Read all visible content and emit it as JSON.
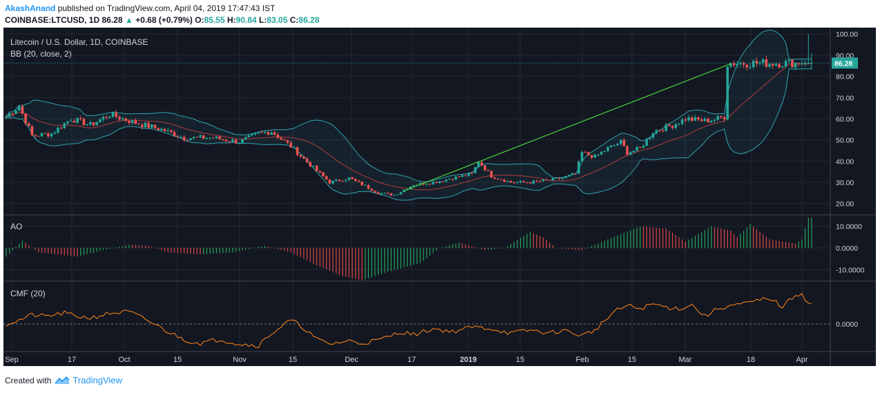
{
  "header": {
    "author": "AkashAnand",
    "published": "published on TradingView.com, April 04, 2019 17:47:43 IST",
    "symbol": "COINBASE:LTCUSD, 1D",
    "price": "86.28",
    "change_arrow": "▲",
    "change": "+0.68 (+0.79%)",
    "o_label": "O:",
    "o": "85.55",
    "h_label": "H:",
    "h": "90.84",
    "l_label": "L:",
    "l": "83.05",
    "c_label": "C:",
    "c": "86.28"
  },
  "footer": {
    "created_with": "Created with",
    "brand": "TradingView",
    "logo_icon": "tradingview-logo-icon"
  },
  "colors": {
    "bg": "#131722",
    "up": "#26a69a",
    "down": "#ef5350",
    "bb": "#2fa6b1",
    "basis": "#b43c3c",
    "trend": "#4cd93c",
    "cmf": "#f57f17",
    "grid": "#242832"
  },
  "chart_data": [
    {
      "type": "candlestick",
      "title": "Litecoin / U.S. Dollar, 1D, COINBASE",
      "indicator": "BB (20, close, 2)",
      "ylim": [
        15,
        103
      ],
      "y_ticks": [
        "100.00",
        "90.00",
        "80.00",
        "70.00",
        "60.00",
        "50.00",
        "40.00",
        "30.00",
        "20.00"
      ],
      "last_price_label": "86.28",
      "last_price": 86.28,
      "x_ticks": [
        "Sep",
        "17",
        "Oct",
        "15",
        "Nov",
        "15",
        "Dec",
        "17",
        "2019",
        "15",
        "Feb",
        "15",
        "Mar",
        "18",
        "Apr"
      ],
      "close_anchors": [
        [
          0,
          61
        ],
        [
          4,
          66
        ],
        [
          8,
          52
        ],
        [
          14,
          53
        ],
        [
          20,
          60
        ],
        [
          26,
          57
        ],
        [
          32,
          62
        ],
        [
          40,
          58
        ],
        [
          48,
          55
        ],
        [
          55,
          51
        ],
        [
          64,
          51
        ],
        [
          72,
          49
        ],
        [
          78,
          53
        ],
        [
          82,
          54
        ],
        [
          88,
          47
        ],
        [
          92,
          41
        ],
        [
          100,
          30
        ],
        [
          106,
          32
        ],
        [
          110,
          29
        ],
        [
          115,
          25
        ],
        [
          120,
          24
        ],
        [
          126,
          29
        ],
        [
          132,
          30
        ],
        [
          138,
          32
        ],
        [
          144,
          34
        ],
        [
          146,
          40
        ],
        [
          150,
          33
        ],
        [
          156,
          30
        ],
        [
          162,
          30
        ],
        [
          168,
          31
        ],
        [
          172,
          32
        ],
        [
          176,
          34
        ],
        [
          178,
          44
        ],
        [
          182,
          42
        ],
        [
          186,
          46
        ],
        [
          190,
          49
        ],
        [
          192,
          44
        ],
        [
          196,
          46
        ],
        [
          200,
          54
        ],
        [
          206,
          57
        ],
        [
          210,
          60
        ],
        [
          216,
          59
        ],
        [
          220,
          60
        ],
        [
          222,
          61
        ],
        [
          223,
          86
        ],
        [
          224,
          86.28
        ]
      ],
      "trendline": [
        [
          123,
          26
        ],
        [
          224,
          86
        ]
      ],
      "bb_period": 20,
      "bb_mult": 2
    },
    {
      "type": "bar",
      "title": "AO",
      "ylim": [
        -15,
        15
      ],
      "y_ticks": [
        "10.0000",
        "0.0000",
        "-10.0000"
      ],
      "ao_anchors": [
        [
          0,
          -4
        ],
        [
          5,
          3.5
        ],
        [
          10,
          -2
        ],
        [
          16,
          -3
        ],
        [
          22,
          -4
        ],
        [
          30,
          -1
        ],
        [
          38,
          1.5
        ],
        [
          44,
          1
        ],
        [
          50,
          -2
        ],
        [
          60,
          -3
        ],
        [
          70,
          -2
        ],
        [
          80,
          1
        ],
        [
          88,
          -2
        ],
        [
          96,
          -8
        ],
        [
          104,
          -13
        ],
        [
          110,
          -15
        ],
        [
          118,
          -11
        ],
        [
          128,
          -7
        ],
        [
          134,
          0
        ],
        [
          140,
          2.5
        ],
        [
          148,
          -1
        ],
        [
          154,
          0
        ],
        [
          162,
          7.5
        ],
        [
          166,
          5
        ],
        [
          170,
          0
        ],
        [
          178,
          -1
        ],
        [
          186,
          4
        ],
        [
          196,
          10
        ],
        [
          204,
          9
        ],
        [
          210,
          3
        ],
        [
          218,
          10
        ],
        [
          224,
          8
        ],
        [
          226,
          5
        ],
        [
          228,
          8
        ],
        [
          230,
          11
        ],
        [
          236,
          4
        ],
        [
          244,
          2
        ],
        [
          246,
          4
        ],
        [
          248,
          14
        ]
      ]
    },
    {
      "type": "line",
      "title": "CMF (20)",
      "ylim": [
        -0.35,
        0.55
      ],
      "y_ticks": [
        "0.0000"
      ],
      "cmf_anchors": [
        [
          0,
          0
        ],
        [
          4,
          0.05
        ],
        [
          8,
          0.12
        ],
        [
          12,
          0.1
        ],
        [
          18,
          0.14
        ],
        [
          22,
          0.1
        ],
        [
          26,
          0.08
        ],
        [
          32,
          0.14
        ],
        [
          38,
          0.16
        ],
        [
          44,
          0.04
        ],
        [
          50,
          -0.1
        ],
        [
          56,
          -0.22
        ],
        [
          60,
          -0.25
        ],
        [
          66,
          -0.2
        ],
        [
          72,
          -0.26
        ],
        [
          78,
          -0.28
        ],
        [
          82,
          -0.12
        ],
        [
          88,
          0.05
        ],
        [
          92,
          -0.05
        ],
        [
          96,
          -0.2
        ],
        [
          100,
          -0.26
        ],
        [
          106,
          -0.22
        ],
        [
          110,
          -0.25
        ],
        [
          116,
          -0.2
        ],
        [
          122,
          -0.1
        ],
        [
          126,
          -0.14
        ],
        [
          132,
          -0.06
        ],
        [
          138,
          -0.1
        ],
        [
          144,
          -0.04
        ],
        [
          150,
          -0.06
        ],
        [
          156,
          -0.12
        ],
        [
          162,
          -0.08
        ],
        [
          168,
          -0.12
        ],
        [
          172,
          -0.08
        ],
        [
          178,
          -0.15
        ],
        [
          182,
          -0.08
        ],
        [
          184,
          0
        ],
        [
          188,
          0.16
        ],
        [
          192,
          0.24
        ],
        [
          196,
          0.2
        ],
        [
          200,
          0.26
        ],
        [
          204,
          0.22
        ],
        [
          208,
          0.2
        ],
        [
          212,
          0.25
        ],
        [
          216,
          0.1
        ],
        [
          220,
          0.2
        ],
        [
          224,
          0.24
        ],
        [
          228,
          0.26
        ],
        [
          232,
          0.3
        ],
        [
          236,
          0.34
        ],
        [
          240,
          0.22
        ],
        [
          244,
          0.38
        ],
        [
          246,
          0.4
        ],
        [
          248,
          0.26
        ]
      ]
    }
  ]
}
